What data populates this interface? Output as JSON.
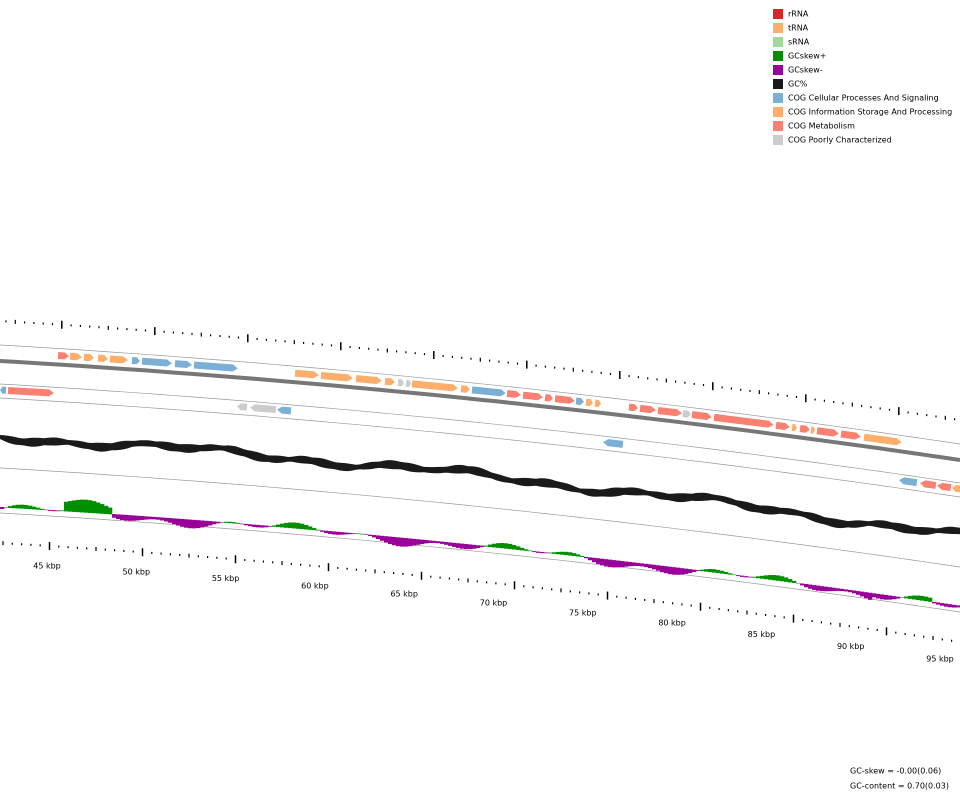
{
  "legend": [
    {
      "label": "rRNA",
      "color": "#d62728"
    },
    {
      "label": "tRNA",
      "color": "#fdae6b"
    },
    {
      "label": "sRNA",
      "color": "#a1d99b"
    },
    {
      "label": "GCskew+",
      "color": "#008f00"
    },
    {
      "label": "GCskew-",
      "color": "#990099"
    },
    {
      "label": "GC%",
      "color": "#1a1a1a"
    },
    {
      "label": "COG Cellular Processes And Signaling",
      "color": "#7bafd4"
    },
    {
      "label": "COG Information Storage And Processing",
      "color": "#fdae6b"
    },
    {
      "label": "COG Metabolism",
      "color": "#fa8072"
    },
    {
      "label": "COG Poorly Characterized",
      "color": "#cccccc"
    }
  ],
  "scale_labels": [
    "45 kbp",
    "50 kbp",
    "55 kbp",
    "60 kbp",
    "65 kbp",
    "70 kbp",
    "75 kbp",
    "80 kbp",
    "85 kbp",
    "90 kbp",
    "95 kbp"
  ],
  "stats": [
    "GC-skew = -0.00(0.06)",
    "GC-content = 0.70(0.03)"
  ]
}
